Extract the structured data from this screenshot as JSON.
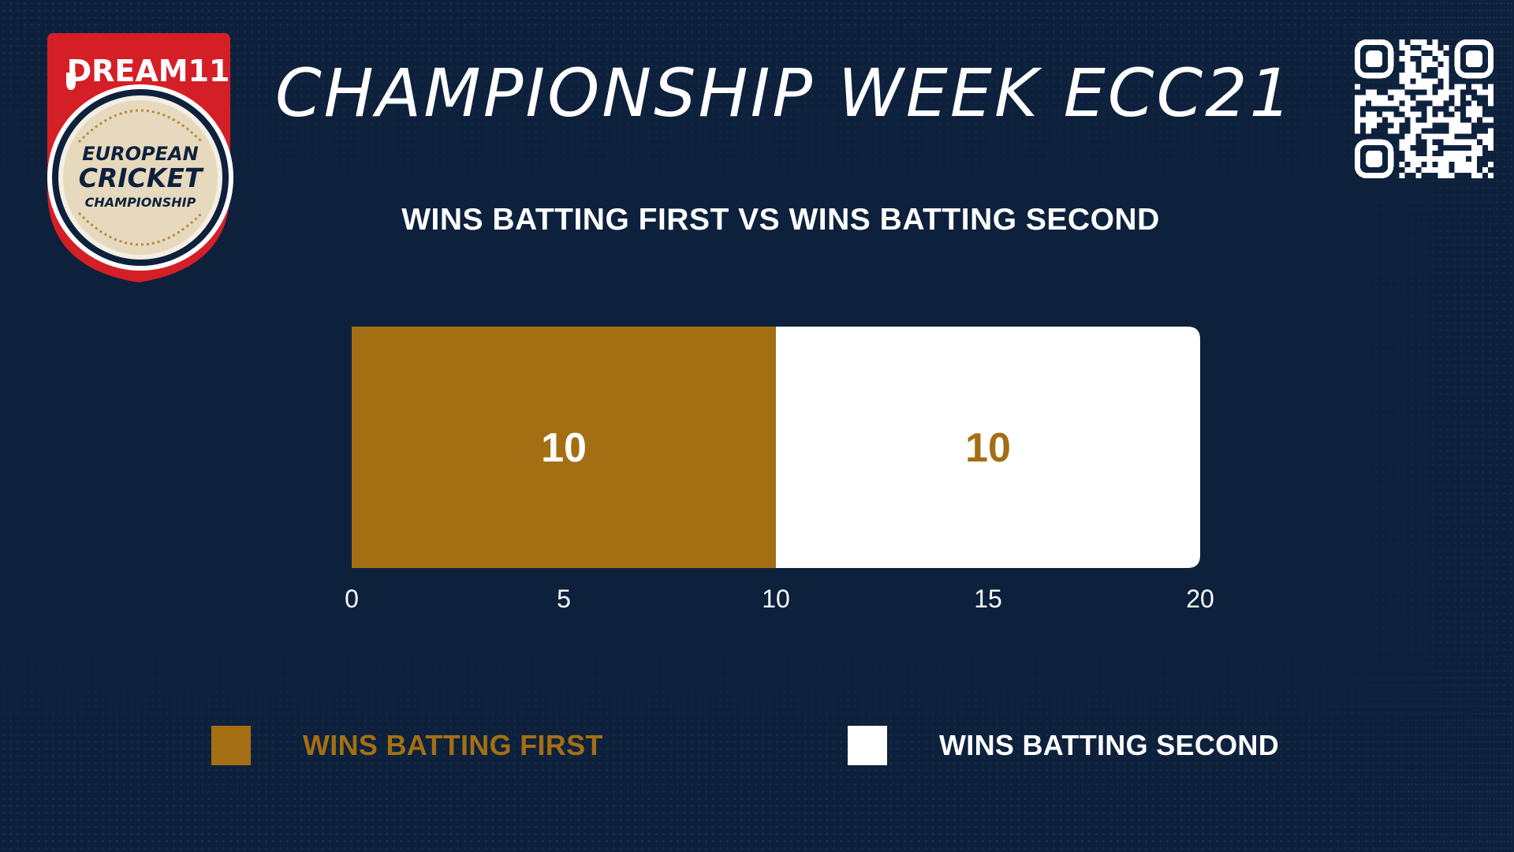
{
  "header": {
    "title": "CHAMPIONSHIP WEEK ECC21",
    "sponsor_logo_text": "DREAM11",
    "event_logo_lines": [
      "EUROPEAN",
      "CRICKET",
      "CHAMPIONSHIP"
    ],
    "qr_icon": "qr-code-icon"
  },
  "colors": {
    "background": "#0d213d",
    "batting_first": "#a46f13",
    "batting_second": "#ffffff",
    "logo_red": "#d51f26"
  },
  "chart_data": {
    "type": "bar",
    "orientation": "horizontal",
    "stacked": true,
    "title": "WINS BATTING FIRST VS WINS BATTING SECOND",
    "categories": [
      ""
    ],
    "series": [
      {
        "name": "WINS BATTING FIRST",
        "values": [
          10
        ],
        "color": "#a46f13",
        "label_color": "#ffffff"
      },
      {
        "name": "WINS BATTING SECOND",
        "values": [
          10
        ],
        "color": "#ffffff",
        "label_color": "#a46f13"
      }
    ],
    "xlim": [
      0,
      20
    ],
    "xticks": [
      "0",
      "5",
      "10",
      "15",
      "20"
    ],
    "grid": false,
    "legend_position": "bottom"
  },
  "legend": [
    {
      "label": "WINS BATTING FIRST",
      "color": "#a46f13",
      "text_color": "#a46f13"
    },
    {
      "label": "WINS BATTING SECOND",
      "color": "#ffffff",
      "text_color": "#ffffff"
    }
  ]
}
